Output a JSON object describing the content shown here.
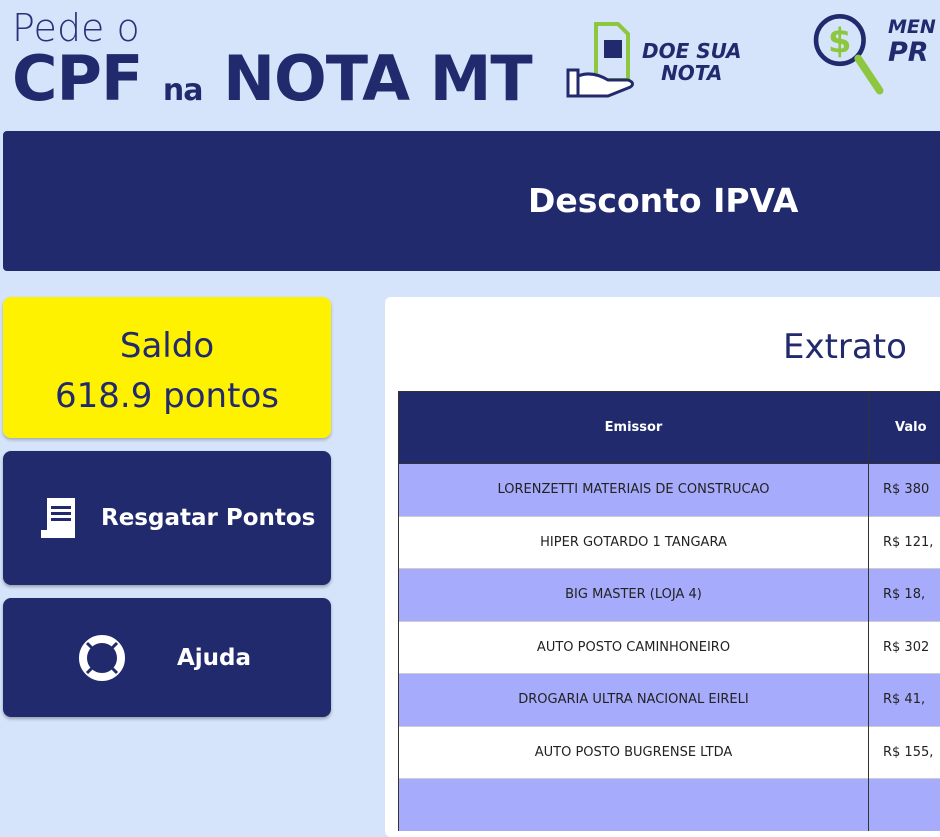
{
  "header": {
    "logo_line1": "Pede o",
    "logo_cpf": "CPF",
    "logo_na": "na",
    "logo_nota": "NOTA MT",
    "doe_line1": "DOE SUA",
    "doe_line2": "NOTA",
    "men_line1": "MEN",
    "men_line2": "PR"
  },
  "banner": {
    "title": "Desconto IPVA"
  },
  "saldo": {
    "label": "Saldo",
    "value": "618.9 pontos"
  },
  "buttons": {
    "resgatar": "Resgatar Pontos",
    "ajuda": "Ajuda"
  },
  "extrato": {
    "title": "Extrato",
    "columns": [
      "Emissor",
      "Valo"
    ],
    "rows": [
      {
        "emissor": "LORENZETTI MATERIAIS DE CONSTRUCAO",
        "valor": "R$ 380"
      },
      {
        "emissor": "HIPER GOTARDO 1 TANGARA",
        "valor": "R$ 121,"
      },
      {
        "emissor": "BIG MASTER (LOJA 4)",
        "valor": "R$ 18,"
      },
      {
        "emissor": "AUTO POSTO CAMINHONEIRO",
        "valor": "R$ 302"
      },
      {
        "emissor": "DROGARIA ULTRA NACIONAL EIRELI",
        "valor": "R$ 41,"
      },
      {
        "emissor": "AUTO POSTO BUGRENSE LTDA",
        "valor": "R$ 155,"
      },
      {
        "emissor": "",
        "valor": ""
      }
    ]
  },
  "colors": {
    "navy": "#222a6e",
    "yellow": "#fff200",
    "row_alt": "#a6abfb",
    "background": "#d6e4fb",
    "accent_green": "#8dc63f"
  }
}
